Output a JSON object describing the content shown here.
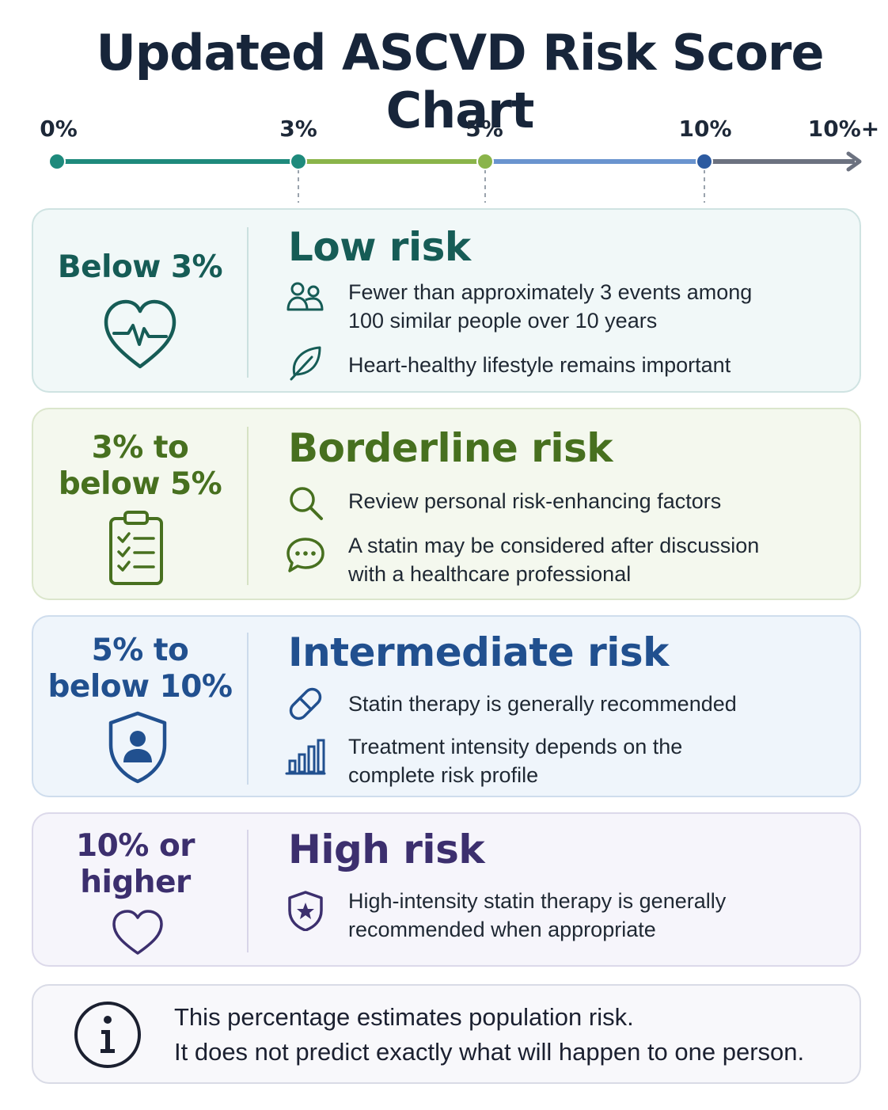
{
  "title": "Updated ASCVD Risk Score Chart",
  "scale": {
    "ticks": [
      {
        "label": "0%",
        "color": "#1e8a7c"
      },
      {
        "label": "3%",
        "color": "#1e8a7c"
      },
      {
        "label": "5%",
        "color": "#8ab44a"
      },
      {
        "label": "10%",
        "color": "#2c5aa0"
      },
      {
        "label": "10%+",
        "color": "#6c7280"
      }
    ],
    "segment_colors": [
      "#1e8a7c",
      "#8ab44a",
      "#6a94cf",
      "#6c7280"
    ]
  },
  "levels": [
    {
      "range": [
        "Below 3%"
      ],
      "title": "Low risk",
      "icon": "heart-pulse-icon",
      "accent": "#165c56",
      "bullets": [
        {
          "icon": "people-icon",
          "lines": [
            "Fewer than approximately 3 events among",
            "100 similar people over 10 years"
          ]
        },
        {
          "icon": "leaf-icon",
          "lines": [
            "Heart-healthy lifestyle remains important"
          ]
        }
      ]
    },
    {
      "range": [
        "3% to",
        "below 5%"
      ],
      "title": "Borderline risk",
      "icon": "clipboard-checklist-icon",
      "accent": "#47701f",
      "bullets": [
        {
          "icon": "magnifier-icon",
          "lines": [
            "Review personal risk-enhancing factors"
          ]
        },
        {
          "icon": "chat-bubble-icon",
          "lines": [
            "A statin may be considered after discussion",
            "with a healthcare professional"
          ]
        }
      ]
    },
    {
      "range": [
        "5% to",
        "below 10%"
      ],
      "title": "Intermediate risk",
      "icon": "shield-person-icon",
      "accent": "#21508f",
      "bullets": [
        {
          "icon": "pill-icon",
          "lines": [
            "Statin therapy is generally recommended"
          ]
        },
        {
          "icon": "bar-chart-icon",
          "lines": [
            "Treatment intensity depends on the",
            "complete risk profile"
          ]
        }
      ]
    },
    {
      "range": [
        "10% or",
        "higher"
      ],
      "title": "High risk",
      "icon": "heart-outline-icon",
      "accent": "#3c2f6e",
      "bullets": [
        {
          "icon": "shield-star-icon",
          "lines": [
            "High-intensity statin therapy is generally",
            "recommended when appropriate"
          ]
        }
      ]
    }
  ],
  "note": {
    "icon": "info-icon",
    "lines": [
      "This percentage estimates population risk.",
      "It does not predict exactly what will happen to one person."
    ]
  }
}
